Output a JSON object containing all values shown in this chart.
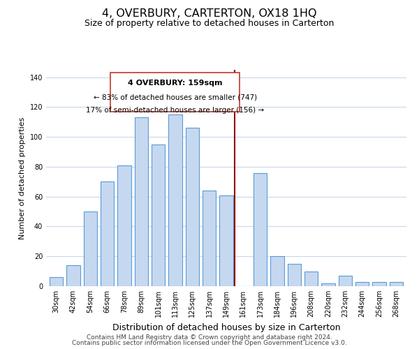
{
  "title": "4, OVERBURY, CARTERTON, OX18 1HQ",
  "subtitle": "Size of property relative to detached houses in Carterton",
  "xlabel": "Distribution of detached houses by size in Carterton",
  "ylabel": "Number of detached properties",
  "bar_color": "#c5d8f0",
  "bar_edge_color": "#5b9bd5",
  "background_color": "#ffffff",
  "grid_color": "#c8d8ea",
  "categories": [
    "30sqm",
    "42sqm",
    "54sqm",
    "66sqm",
    "78sqm",
    "89sqm",
    "101sqm",
    "113sqm",
    "125sqm",
    "137sqm",
    "149sqm",
    "161sqm",
    "173sqm",
    "184sqm",
    "196sqm",
    "208sqm",
    "220sqm",
    "232sqm",
    "244sqm",
    "256sqm",
    "268sqm"
  ],
  "values": [
    6,
    14,
    50,
    70,
    81,
    113,
    95,
    115,
    106,
    64,
    61,
    0,
    76,
    20,
    15,
    10,
    2,
    7,
    3,
    3,
    3
  ],
  "ylim": [
    0,
    145
  ],
  "yticks": [
    0,
    20,
    40,
    60,
    80,
    100,
    120,
    140
  ],
  "marker_label": "4 OVERBURY: 159sqm",
  "annotation_line1": "← 83% of detached houses are smaller (747)",
  "annotation_line2": "17% of semi-detached houses are larger (156) →",
  "footer1": "Contains HM Land Registry data © Crown copyright and database right 2024.",
  "footer2": "Contains public sector information licensed under the Open Government Licence v3.0.",
  "title_fontsize": 11.5,
  "subtitle_fontsize": 9,
  "xlabel_fontsize": 9,
  "ylabel_fontsize": 8,
  "tick_fontsize": 7,
  "annotation_fontsize": 8,
  "footer_fontsize": 6.5
}
